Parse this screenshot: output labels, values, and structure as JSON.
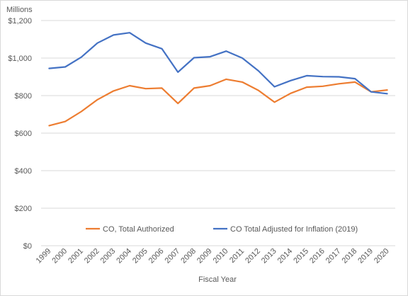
{
  "chart_data": {
    "type": "line",
    "title": "",
    "unit_label": "Millions",
    "xlabel": "Fiscal Year",
    "ylabel": "",
    "ylim": [
      0,
      1200
    ],
    "yticks": [
      0,
      200,
      400,
      600,
      800,
      1000,
      1200
    ],
    "ytick_labels": [
      "$0",
      "$200",
      "$400",
      "$600",
      "$800",
      "$1,000",
      "$1,200"
    ],
    "grid": "horizontal",
    "legend_position": "bottom-inside",
    "x": [
      "1999",
      "2000",
      "2001",
      "2002",
      "2003",
      "2004",
      "2005",
      "2006",
      "2007",
      "2008",
      "2009",
      "2010",
      "2011",
      "2012",
      "2013",
      "2014",
      "2015",
      "2016",
      "2017",
      "2018",
      "2019",
      "2020"
    ],
    "series": [
      {
        "name": "CO, Total Authorized",
        "color": "#ED7D31",
        "values": [
          640,
          662,
          715,
          778,
          825,
          853,
          837,
          840,
          758,
          840,
          853,
          887,
          872,
          828,
          765,
          812,
          845,
          850,
          863,
          872,
          820,
          830
        ]
      },
      {
        "name": "CO Total Adjusted for Inflation (2019)",
        "color": "#4472C4",
        "values": [
          945,
          953,
          1005,
          1080,
          1123,
          1135,
          1080,
          1050,
          925,
          1002,
          1007,
          1037,
          1000,
          932,
          847,
          880,
          906,
          901,
          900,
          890,
          820,
          810
        ]
      }
    ]
  }
}
